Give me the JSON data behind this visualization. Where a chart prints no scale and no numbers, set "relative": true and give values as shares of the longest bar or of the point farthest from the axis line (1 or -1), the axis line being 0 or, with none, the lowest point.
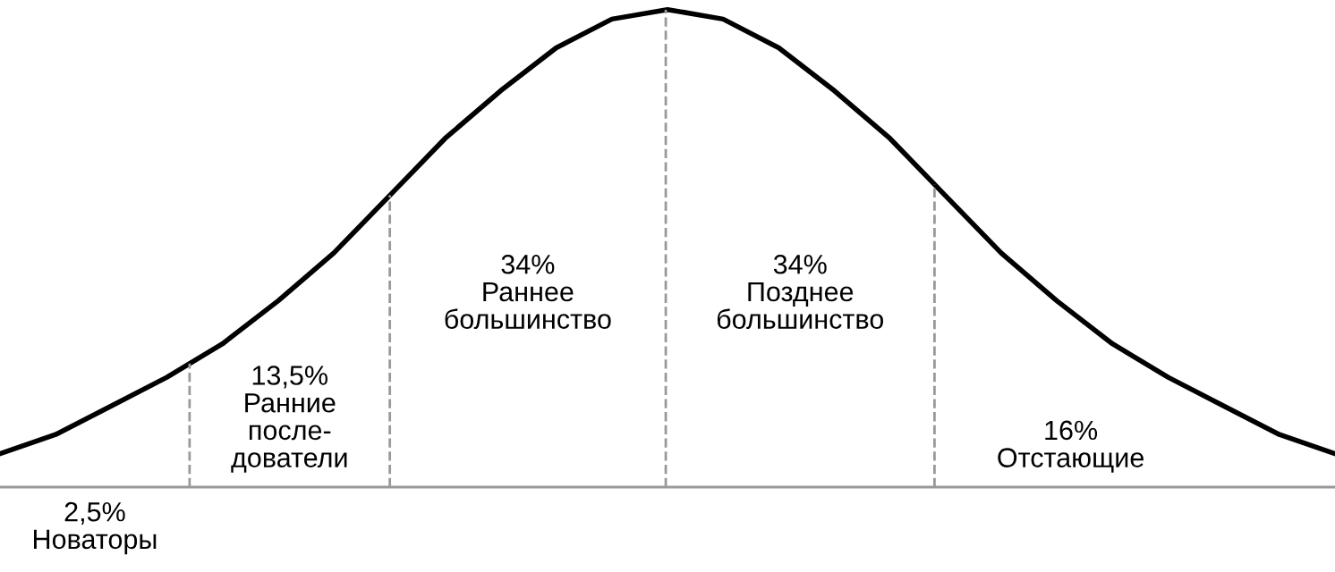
{
  "chart_data": {
    "type": "line",
    "relative": true,
    "color": "#000000",
    "categories": [
      null,
      null,
      null,
      null,
      null,
      null,
      null,
      null,
      null,
      null,
      null,
      null,
      null,
      null,
      null,
      null,
      null,
      null,
      null,
      null,
      null,
      null,
      null,
      null,
      null
    ],
    "values": [
      0.07,
      0.11,
      0.17,
      0.23,
      0.3,
      0.39,
      0.49,
      0.61,
      0.73,
      0.83,
      0.92,
      0.98,
      1.0,
      0.98,
      0.92,
      0.83,
      0.73,
      0.61,
      0.49,
      0.39,
      0.3,
      0.23,
      0.17,
      0.11,
      0.07
    ],
    "annotations": [
      "2,5%\nНоваторы",
      "13,5%\nРанние\nпосле-\nдователи",
      "34%\nРаннее\nбольшинство",
      "34%\nПозднее\nбольшинство",
      "16%\nОтстающие"
    ],
    "legend": false
  }
}
